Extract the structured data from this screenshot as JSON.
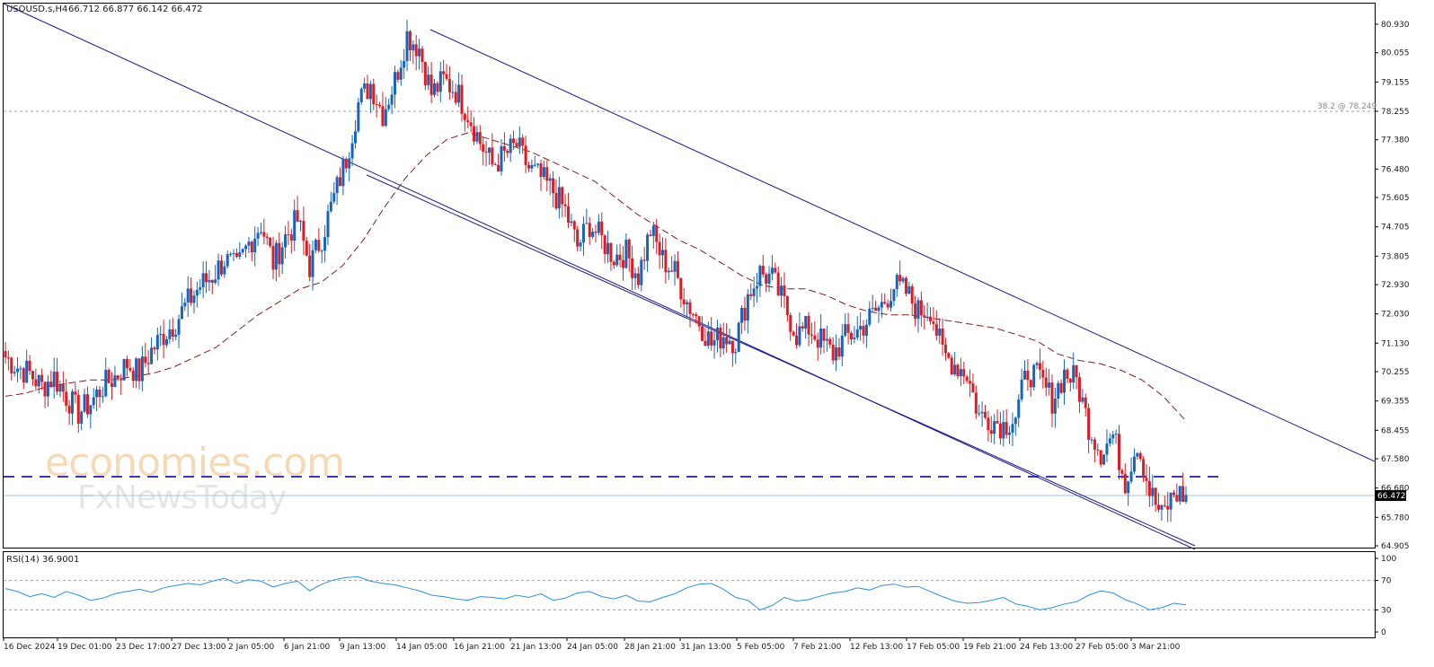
{
  "header": {
    "symbol": "USOUSD.s,H4",
    "ohlc": "66.712 66.877 66.142 66.472"
  },
  "watermark": {
    "brand_line1": "economies.com",
    "brand_line2": "FxNewsToday"
  },
  "fib_label": "38.2 @ 78.249",
  "current_price_label": "66.472",
  "rsi_header": "RSI(14) 36.9001",
  "colors": {
    "bull": "#1565c0",
    "bear": "#e01b22",
    "channel": "#1a1a8c",
    "ma": "#8b1a1a",
    "rsi": "#2f8fe0",
    "support": "#3a3ab0",
    "watermark_orange": "#f6d9b6",
    "watermark_gray": "#e6e6e6"
  },
  "chart_data": [
    {
      "type": "candlestick",
      "symbol": "USOUSD.s",
      "timeframe": "H4",
      "ylim": [
        64.905,
        80.93
      ],
      "y_ticks": [
        "80.930",
        "80.055",
        "79.155",
        "78.255",
        "77.380",
        "76.480",
        "75.605",
        "74.705",
        "73.805",
        "72.930",
        "72.030",
        "71.130",
        "70.255",
        "69.355",
        "68.455",
        "67.580",
        "66.680",
        "65.780",
        "64.905"
      ],
      "x_ticks": [
        "16 Dec 2024",
        "19 Dec 01:00",
        "23 Dec 17:00",
        "27 Dec 13:00",
        "2 Jan 05:00",
        "6 Jan 21:00",
        "9 Jan 13:00",
        "14 Jan 05:00",
        "16 Jan 21:00",
        "21 Jan 13:00",
        "24 Jan 05:00",
        "28 Jan 21:00",
        "31 Jan 13:00",
        "5 Feb 05:00",
        "7 Feb 21:00",
        "12 Feb 13:00",
        "17 Feb 05:00",
        "19 Feb 21:00",
        "24 Feb 13:00",
        "27 Feb 05:00",
        "3 Mar 21:00"
      ],
      "close_path": [
        70.7,
        70.4,
        70.2,
        69.8,
        70.1,
        69.5,
        69.0,
        69.3,
        69.8,
        70.1,
        70.5,
        70.2,
        70.9,
        71.4,
        71.8,
        72.4,
        72.9,
        73.2,
        73.7,
        73.4,
        74.2,
        74.8,
        73.6,
        74.4,
        74.9,
        73.5,
        74.4,
        75.6,
        76.8,
        78.5,
        79.1,
        78.2,
        79.2,
        80.6,
        80.2,
        78.8,
        79.2,
        78.9,
        78.2,
        77.3,
        76.6,
        76.9,
        77.2,
        76.5,
        76.2,
        75.8,
        75.2,
        74.1,
        74.8,
        74.3,
        73.8,
        73.9,
        73.2,
        74.6,
        73.7,
        73.3,
        72.4,
        71.8,
        71.1,
        71.4,
        71.2,
        72.6,
        73.3,
        73.1,
        72.3,
        71.4,
        71.6,
        71.2,
        70.8,
        71.3,
        71.5,
        71.9,
        72.3,
        72.9,
        72.7,
        72.1,
        72.2,
        70.8,
        70.5,
        70.2,
        68.9,
        68.8,
        68.6,
        68.9,
        70.3,
        70.0,
        69.4,
        70.2,
        70.0,
        68.6,
        67.8,
        68.3,
        66.9,
        68.1,
        66.6,
        65.8,
        66.5,
        66.47
      ],
      "ma_dashed": [
        69.5,
        69.6,
        69.8,
        69.9,
        70.0,
        70.0,
        70.1,
        70.2,
        70.4,
        70.7,
        71.0,
        71.5,
        72.0,
        72.4,
        72.8,
        73.0,
        73.5,
        74.3,
        75.3,
        76.2,
        76.9,
        77.4,
        77.6,
        77.4,
        77.2,
        77.0,
        76.7,
        76.4,
        76.1,
        75.6,
        75.1,
        74.7,
        74.3,
        74.0,
        73.6,
        73.2,
        72.9,
        72.8,
        72.8,
        72.6,
        72.3,
        72.1,
        72.0,
        72.0,
        71.9,
        71.8,
        71.7,
        71.6,
        71.4,
        71.2,
        70.8,
        70.6,
        70.5,
        70.3,
        70.0,
        69.5,
        68.8
      ],
      "resistance_line": {
        "from": [
          "16 Dec 2024",
          80.93
        ],
        "to": [
          "3 Mar 21:00",
          67.6
        ]
      },
      "channel_upper": {
        "from": [
          "14 Jan 05:00",
          80.93
        ],
        "to": [
          "3 Mar 21:00",
          67.6
        ]
      },
      "channel_lower": {
        "from": [
          "6 Jan 21:00",
          76.3
        ],
        "to": [
          "3 Mar 21:00",
          64.905
        ]
      },
      "horizontal_support": 67.1,
      "fib_level": {
        "label": "38.2 @ 78.249",
        "value": 78.249
      },
      "last_price": 66.472
    },
    {
      "type": "line",
      "name": "RSI(14)",
      "ylim": [
        0,
        100
      ],
      "y_ticks": [
        "100",
        "70",
        "30",
        "0"
      ],
      "levels": [
        70,
        30
      ],
      "last_value": 36.9001,
      "values": [
        59,
        55,
        48,
        52,
        47,
        55,
        50,
        43,
        46,
        52,
        55,
        58,
        54,
        60,
        63,
        66,
        64,
        69,
        73,
        66,
        71,
        69,
        61,
        66,
        69,
        56,
        65,
        71,
        74,
        75,
        69,
        66,
        64,
        60,
        56,
        50,
        48,
        45,
        43,
        48,
        47,
        45,
        50,
        47,
        52,
        43,
        46,
        53,
        55,
        48,
        45,
        50,
        42,
        41,
        47,
        52,
        60,
        65,
        66,
        58,
        47,
        43,
        30,
        36,
        47,
        42,
        44,
        49,
        53,
        55,
        60,
        57,
        63,
        65,
        61,
        62,
        55,
        48,
        42,
        39,
        40,
        43,
        47,
        38,
        35,
        30,
        33,
        38,
        41,
        50,
        56,
        53,
        44,
        38,
        30,
        33,
        39,
        37
      ]
    }
  ]
}
